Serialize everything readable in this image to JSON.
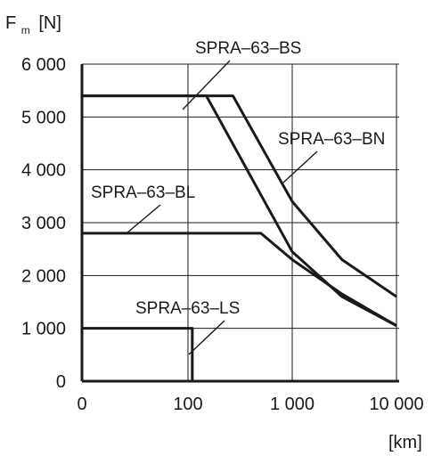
{
  "chart_data": {
    "type": "line",
    "ylabel_main": "F",
    "ylabel_sub": "m",
    "ylabel_unit": "[N]",
    "xlabel": "[km]",
    "x_scale": "log (0 to 100 drawn as separate first decade)",
    "xticks": [
      "0",
      "100",
      "1 000",
      "10 000"
    ],
    "yticks": [
      "0",
      "1 000",
      "2 000",
      "3 000",
      "4 000",
      "5 000",
      "6 000"
    ],
    "ylim": [
      0,
      6000
    ],
    "grid": true,
    "series": [
      {
        "name": "SPRA–63–BS",
        "x": [
          0,
          270,
          1000,
          3000,
          10000
        ],
        "y": [
          5400,
          5400,
          3400,
          2300,
          1600
        ]
      },
      {
        "name": "SPRA–63–BN",
        "x": [
          0,
          100,
          150,
          1000,
          3000,
          10000
        ],
        "y": [
          5400,
          5400,
          5400,
          2450,
          1600,
          1050
        ]
      },
      {
        "name": "SPRA–63–BL",
        "x": [
          0,
          500,
          1000,
          3000,
          10000
        ],
        "y": [
          2800,
          2800,
          2300,
          1650,
          1050
        ]
      },
      {
        "name": "SPRA–63–LS",
        "x": [
          0,
          110,
          110
        ],
        "y": [
          1000,
          1000,
          0
        ]
      }
    ]
  }
}
